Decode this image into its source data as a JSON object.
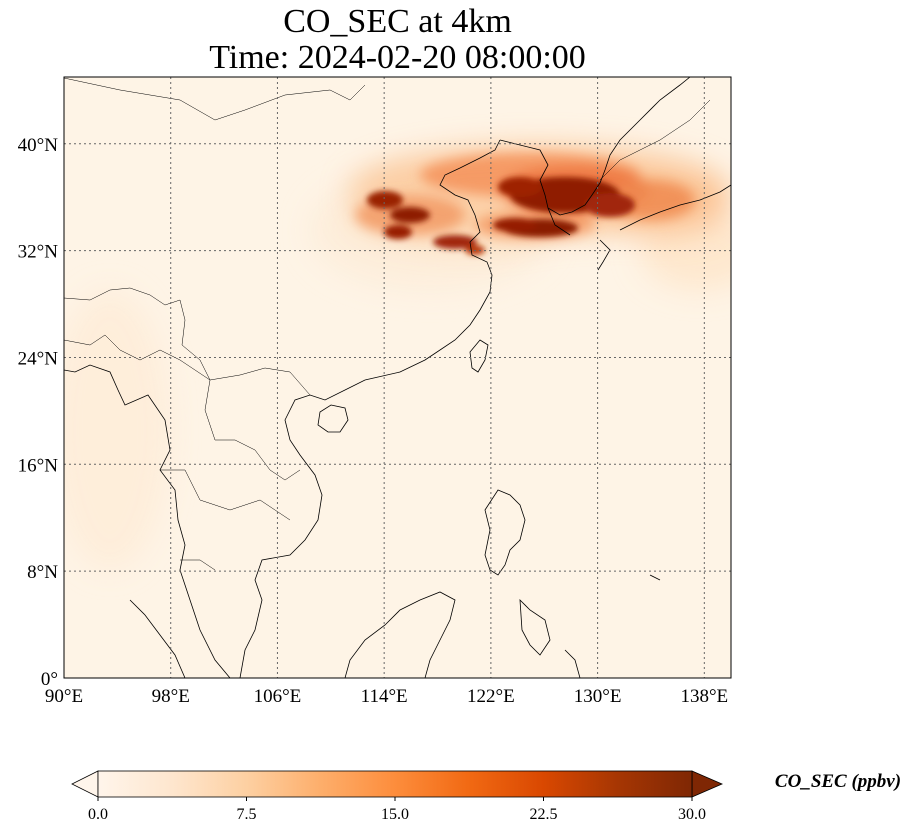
{
  "title": {
    "line1": "CO_SEC at 4km",
    "line2": "Time: 2024-02-20 08:00:00"
  },
  "map": {
    "lon_range": [
      90,
      140
    ],
    "lat_range": [
      0,
      45
    ],
    "x_ticks": [
      {
        "value": 90,
        "label": "90°E"
      },
      {
        "value": 98,
        "label": "98°E"
      },
      {
        "value": 106,
        "label": "106°E"
      },
      {
        "value": 114,
        "label": "114°E"
      },
      {
        "value": 122,
        "label": "122°E"
      },
      {
        "value": 130,
        "label": "130°E"
      },
      {
        "value": 138,
        "label": "138°E"
      }
    ],
    "y_ticks": [
      {
        "value": 0,
        "label": "0°"
      },
      {
        "value": 8,
        "label": "8°N"
      },
      {
        "value": 16,
        "label": "16°N"
      },
      {
        "value": 24,
        "label": "24°N"
      },
      {
        "value": 32,
        "label": "32°N"
      },
      {
        "value": 40,
        "label": "40°N"
      }
    ],
    "gridlines": true,
    "background_color": "#fef4e6",
    "coastline_color": "#000000"
  },
  "colorbar": {
    "label": "CO_SEC (ppbv)",
    "range": [
      0.0,
      30.0
    ],
    "extend": "both",
    "colormap": [
      "#fff5eb",
      "#fee6ce",
      "#fdd0a2",
      "#fdae6b",
      "#fd8d3c",
      "#f16913",
      "#d94801",
      "#a63603",
      "#7f2704"
    ],
    "ticks": [
      {
        "value": 0,
        "label": "0.0"
      },
      {
        "value": 7.5,
        "label": "7.5"
      },
      {
        "value": 15,
        "label": "15.0"
      },
      {
        "value": 22.5,
        "label": "22.5"
      },
      {
        "value": 30,
        "label": "30.0"
      }
    ]
  }
}
